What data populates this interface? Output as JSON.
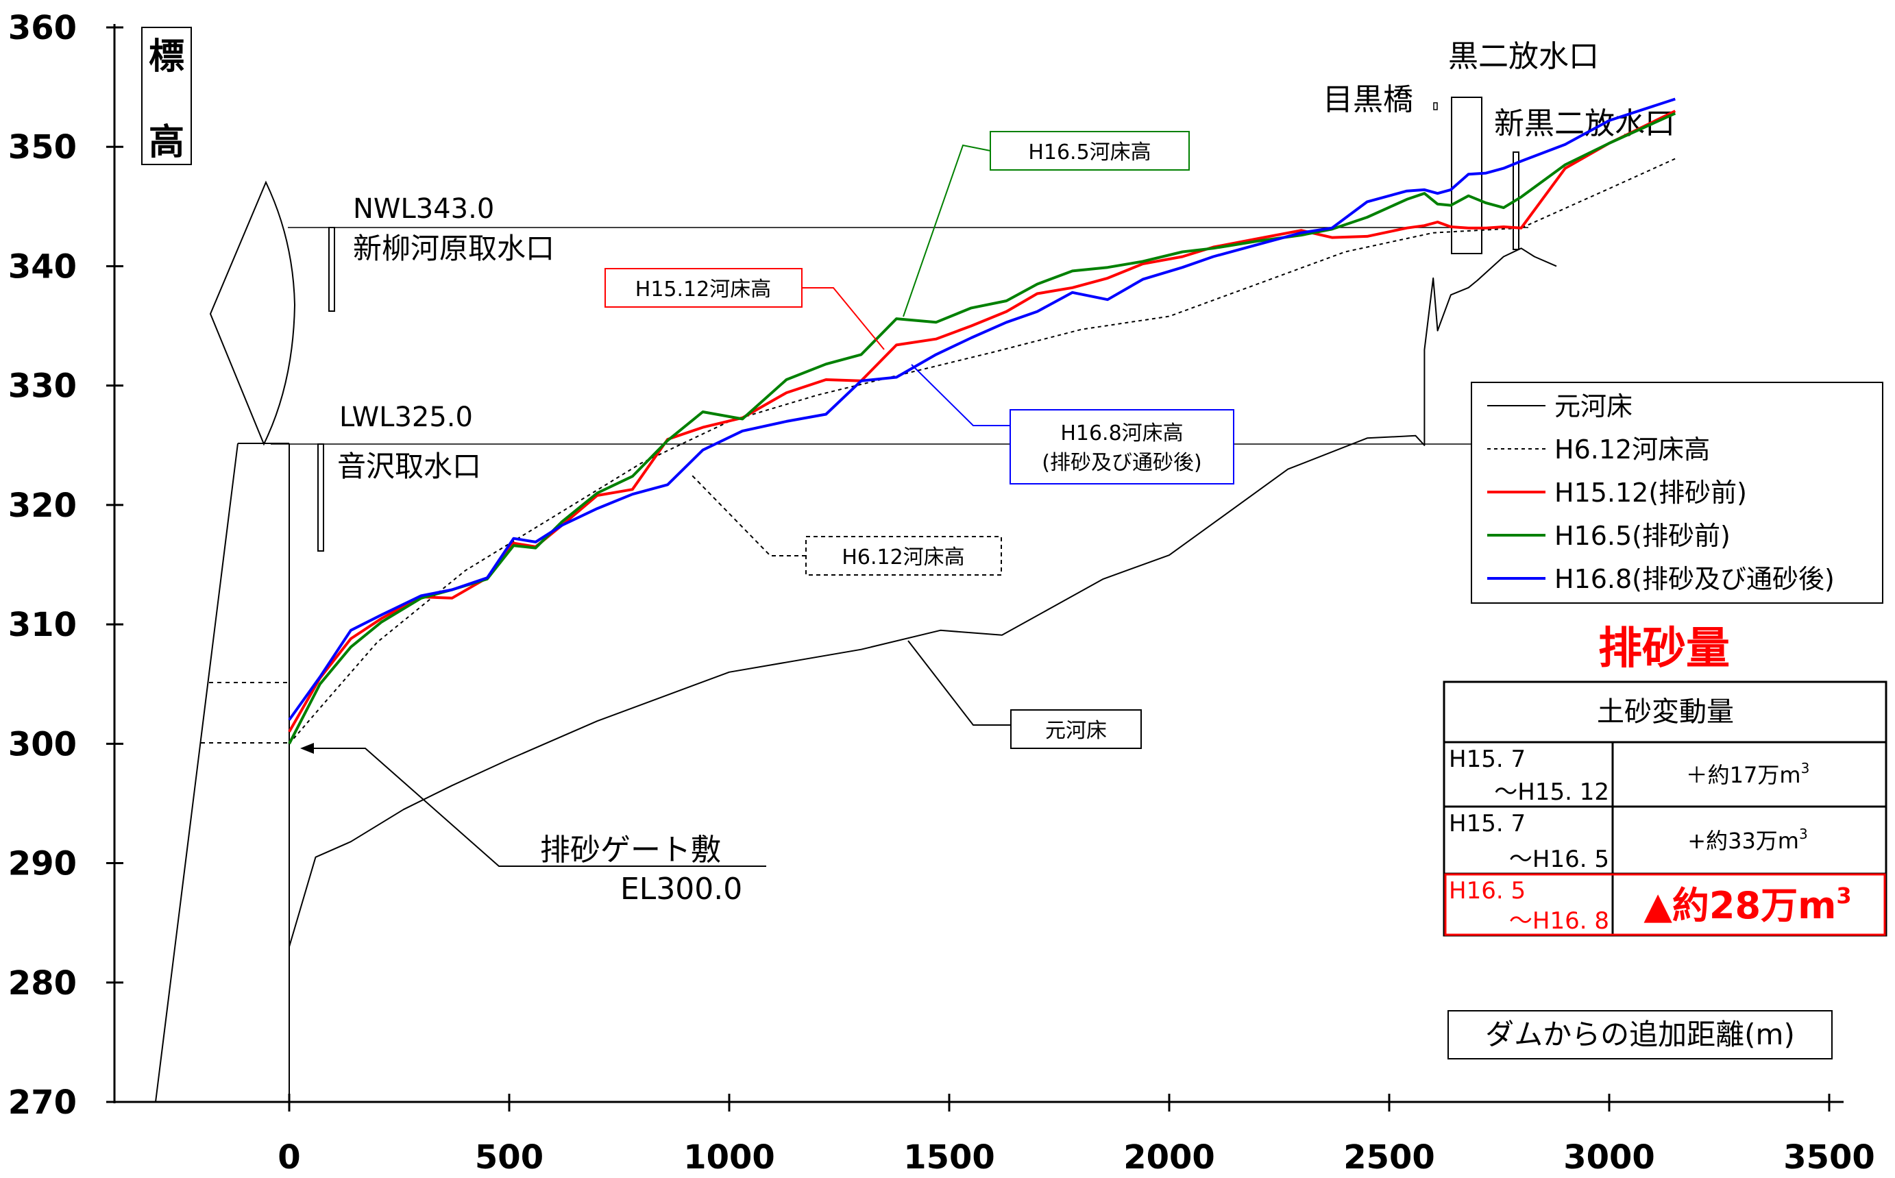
{
  "chart_data": {
    "type": "line",
    "y_axis": {
      "ylim": [
        270,
        360
      ],
      "ticks": [
        270,
        280,
        290,
        300,
        310,
        320,
        330,
        340,
        350,
        360
      ]
    },
    "x_axis": {
      "xlim": [
        -400,
        3500
      ],
      "ticks": [
        0,
        500,
        1000,
        1500,
        2000,
        2500,
        3000,
        3500
      ],
      "tick_labels": [
        "0",
        "500",
        "1000",
        "1500",
        "2000",
        "2500",
        "3000",
        "3500"
      ]
    },
    "ylabel": "標高",
    "xlabel": "ダムからの追加距離(m)",
    "legend_position": "right",
    "series": [
      {
        "key": "orig",
        "name": "元河床",
        "color": "#000000",
        "style": "solid",
        "x": [
          0,
          60,
          140,
          260,
          370,
          500,
          700,
          1000,
          1300,
          1480,
          1620,
          1850,
          2000,
          2270,
          2450,
          2560,
          2580,
          2580,
          2600,
          2610,
          2640,
          2680,
          2700,
          2760,
          2800,
          2830,
          2880
        ],
        "y": [
          283,
          290.5,
          291.8,
          294.5,
          296.5,
          298.7,
          301.9,
          306,
          307.9,
          309.5,
          309.1,
          313.8,
          315.8,
          323,
          325.6,
          325.8,
          325,
          333,
          339,
          334.6,
          337.6,
          338.2,
          338.8,
          340.8,
          341.5,
          340.8,
          340
        ]
      },
      {
        "key": "h612",
        "name": "H6.12河床高",
        "color": "#000000",
        "style": "dotted",
        "x": [
          0,
          70,
          200,
          400,
          600,
          800,
          1000,
          1200,
          1400,
          1600,
          1800,
          2000,
          2200,
          2400,
          2600,
          2800,
          3000,
          3150
        ],
        "y": [
          300,
          303,
          308.5,
          314.5,
          319,
          323.5,
          327,
          329.2,
          331,
          332.8,
          334.7,
          335.8,
          338.5,
          341.2,
          342.8,
          343.2,
          346.5,
          349
        ]
      },
      {
        "key": "h1512",
        "name": "H15.12(排砂前)",
        "color": "#ff0000",
        "style": "solid",
        "x": [
          0,
          70,
          140,
          210,
          300,
          370,
          450,
          510,
          560,
          620,
          700,
          780,
          860,
          940,
          1030,
          1130,
          1220,
          1300,
          1380,
          1470,
          1550,
          1630,
          1700,
          1780,
          1860,
          1940,
          2030,
          2100,
          2200,
          2300,
          2370,
          2450,
          2540,
          2580,
          2610,
          2640,
          2680,
          2720,
          2760,
          2800,
          2900,
          3000,
          3150
        ],
        "y": [
          301,
          305.5,
          308.8,
          310.5,
          312.3,
          312.2,
          313.9,
          316.8,
          316.5,
          318.3,
          320.8,
          321.3,
          325.5,
          326.5,
          327.3,
          329.4,
          330.5,
          330.4,
          333.4,
          333.9,
          335,
          336.2,
          337.7,
          338.2,
          339,
          340.2,
          340.8,
          341.6,
          342.3,
          343,
          342.4,
          342.5,
          343.2,
          343.4,
          343.7,
          343.3,
          343.2,
          343.2,
          343.3,
          343.2,
          348.2,
          350.3,
          353
        ]
      },
      {
        "key": "h165",
        "name": "H16.5(排砂前)",
        "color": "#008000",
        "style": "solid",
        "x": [
          0,
          70,
          140,
          210,
          300,
          370,
          450,
          510,
          560,
          620,
          700,
          780,
          860,
          940,
          1030,
          1130,
          1220,
          1300,
          1380,
          1470,
          1550,
          1630,
          1700,
          1780,
          1860,
          1940,
          2030,
          2100,
          2200,
          2300,
          2370,
          2450,
          2540,
          2580,
          2610,
          2640,
          2680,
          2720,
          2760,
          2800,
          2900,
          3000,
          3150
        ],
        "y": [
          300,
          305,
          308.1,
          310.2,
          312.2,
          312.9,
          313.8,
          316.6,
          316.4,
          318.6,
          321,
          322.4,
          325.4,
          327.8,
          327.2,
          330.5,
          331.8,
          332.6,
          335.6,
          335.3,
          336.5,
          337.1,
          338.5,
          339.6,
          339.9,
          340.4,
          341.2,
          341.5,
          342.1,
          342.6,
          343.1,
          344.1,
          345.6,
          346.1,
          345.2,
          345.1,
          345.9,
          345.3,
          344.9,
          345.8,
          348.5,
          350.3,
          352.8
        ]
      },
      {
        "key": "h168",
        "name": "H16.8(排砂及び通砂後)",
        "color": "#0000ff",
        "style": "solid",
        "x": [
          0,
          70,
          140,
          210,
          300,
          370,
          450,
          510,
          560,
          620,
          700,
          780,
          860,
          940,
          1030,
          1130,
          1220,
          1300,
          1380,
          1470,
          1550,
          1630,
          1700,
          1780,
          1860,
          1940,
          2030,
          2100,
          2200,
          2300,
          2370,
          2450,
          2540,
          2580,
          2610,
          2640,
          2680,
          2720,
          2760,
          2800,
          2900,
          3000,
          3150
        ],
        "y": [
          302,
          305.6,
          309.5,
          310.8,
          312.4,
          312.9,
          313.9,
          317.2,
          316.9,
          318.3,
          319.7,
          320.9,
          321.7,
          324.6,
          326.2,
          327,
          327.6,
          330.4,
          330.7,
          332.6,
          334,
          335.3,
          336.2,
          337.8,
          337.2,
          338.9,
          339.9,
          340.8,
          341.8,
          342.8,
          343.2,
          345.4,
          346.3,
          346.4,
          346.1,
          346.4,
          347.7,
          347.8,
          348.2,
          348.8,
          350.2,
          352.2,
          354
        ]
      }
    ],
    "annotations": {
      "nwl": {
        "label": "NWL343.0",
        "y": 343.0
      },
      "lwl": {
        "label": "LWL325.0",
        "y": 325.0
      },
      "intake_shinyanagi": "新柳河原取水口",
      "intake_otozawa": "音沢取水口",
      "meguro_bridge": "目黒橋",
      "kuroni_outlet": "黒二放水口",
      "shinkuroni_outlet": "新黒二放水口",
      "gate_label": "排砂ゲート敷",
      "gate_el": "EL300.0",
      "callout_h165": "H16.5河床高",
      "callout_h1512": "H15.12河床高",
      "callout_h168_line1": "H16.8河床高",
      "callout_h168_line2": "(排砂及び通砂後)",
      "callout_h612": "H6.12河床高",
      "callout_orig": "元河床"
    },
    "sediment_table": {
      "title": "排砂量",
      "header": "土砂変動量",
      "rows": [
        {
          "period_1": "H15. 7",
          "period_2": "～H15. 12",
          "value": "＋約17万m",
          "sup": "3",
          "highlight": false
        },
        {
          "period_1": "H15. 7",
          "period_2": "～H16. 5",
          "value": "+約33万m",
          "sup": "3",
          "highlight": false
        },
        {
          "period_1": "H16. 5",
          "period_2": "～H16. 8",
          "value": "▲約28万m",
          "sup": "3",
          "highlight": true
        }
      ]
    }
  }
}
